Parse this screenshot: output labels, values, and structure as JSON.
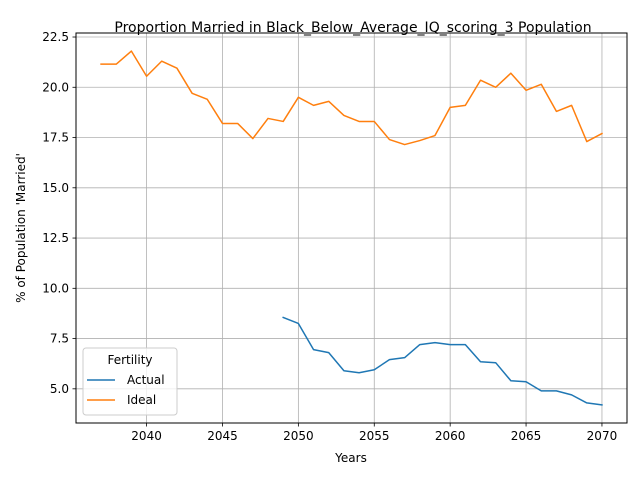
{
  "chart_data": {
    "type": "line",
    "title": "Proportion Married in Black_Below_Average_IQ_scoring_3 Population",
    "xlabel": "Years",
    "ylabel": "% of Population 'Married'",
    "xlim": [
      2035.35,
      2071.65
    ],
    "ylim": [
      3.3,
      22.7
    ],
    "xticks": [
      2040,
      2045,
      2050,
      2055,
      2060,
      2065,
      2070
    ],
    "xtick_labels": [
      "2040",
      "2045",
      "2050",
      "2055",
      "2060",
      "2065",
      "2070"
    ],
    "yticks": [
      5.0,
      7.5,
      10.0,
      12.5,
      15.0,
      17.5,
      20.0,
      22.5
    ],
    "ytick_labels": [
      "5.0",
      "7.5",
      "10.0",
      "12.5",
      "15.0",
      "17.5",
      "20.0",
      "22.5"
    ],
    "grid": true,
    "legend": {
      "title": "Fertility",
      "placement": "lower-left"
    },
    "series": [
      {
        "name": "Actual",
        "color": "#1f77b4",
        "x": [
          2049,
          2050,
          2051,
          2052,
          2053,
          2054,
          2055,
          2056,
          2057,
          2058,
          2059,
          2060,
          2061,
          2062,
          2063,
          2064,
          2065,
          2066,
          2067,
          2068,
          2069,
          2070
        ],
        "y": [
          8.55,
          8.25,
          6.95,
          6.8,
          5.9,
          5.8,
          5.95,
          6.45,
          6.55,
          7.2,
          7.3,
          7.2,
          7.2,
          6.35,
          6.3,
          5.4,
          5.35,
          4.9,
          4.9,
          4.7,
          4.3,
          4.2
        ]
      },
      {
        "name": "Ideal",
        "color": "#ff7f0e",
        "x": [
          2037,
          2038,
          2039,
          2040,
          2041,
          2042,
          2043,
          2044,
          2045,
          2046,
          2047,
          2048,
          2049,
          2050,
          2051,
          2052,
          2053,
          2054,
          2055,
          2056,
          2057,
          2058,
          2059,
          2060,
          2061,
          2062,
          2063,
          2064,
          2065,
          2066,
          2067,
          2068,
          2069,
          2070
        ],
        "y": [
          21.15,
          21.15,
          21.8,
          20.55,
          21.3,
          20.95,
          19.7,
          19.4,
          18.2,
          18.2,
          17.45,
          18.45,
          18.3,
          19.5,
          19.1,
          19.3,
          18.6,
          18.3,
          18.3,
          17.4,
          17.15,
          17.35,
          17.6,
          19.0,
          19.1,
          20.35,
          20.0,
          20.7,
          19.85,
          20.15,
          18.8,
          19.1,
          17.3,
          17.7
        ]
      }
    ]
  }
}
